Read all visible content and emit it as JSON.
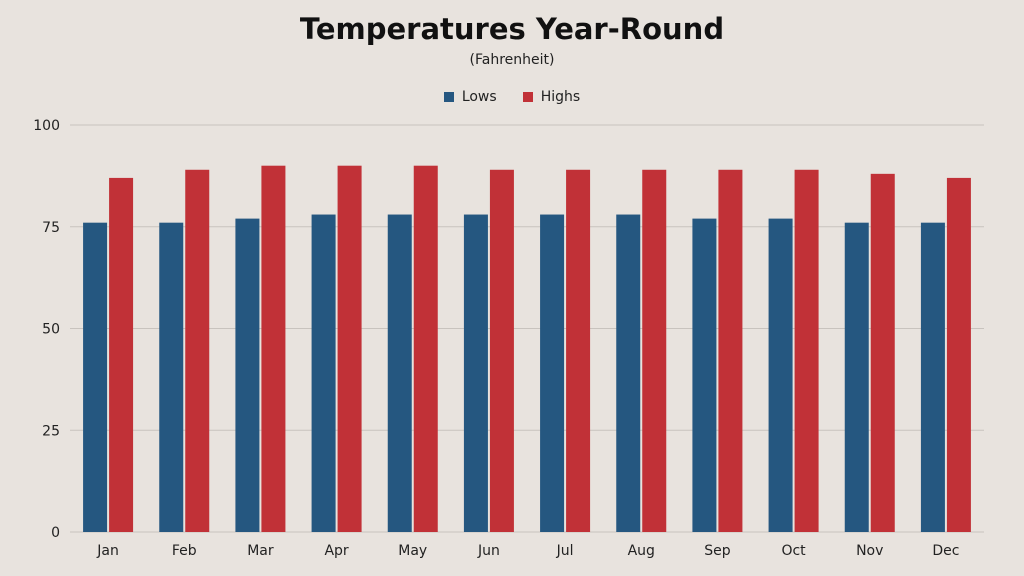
{
  "chart_data": {
    "type": "bar",
    "title": "Temperatures Year-Round",
    "subtitle": "(Fahrenheit)",
    "xlabel": "",
    "ylabel": "",
    "ylim": [
      0,
      100
    ],
    "yticks": [
      "0",
      "25",
      "50",
      "75",
      "100"
    ],
    "grid": true,
    "legend_position": "top-center",
    "categories": [
      "Jan",
      "Feb",
      "Mar",
      "Apr",
      "May",
      "Jun",
      "Jul",
      "Aug",
      "Sep",
      "Oct",
      "Nov",
      "Dec"
    ],
    "series": [
      {
        "name": "Lows",
        "color": "#255780",
        "values": [
          76,
          76,
          77,
          78,
          78,
          78,
          78,
          78,
          77,
          77,
          76,
          76
        ]
      },
      {
        "name": "Highs",
        "color": "#c13137",
        "values": [
          87,
          89,
          90,
          90,
          90,
          89,
          89,
          89,
          89,
          89,
          88,
          87
        ]
      }
    ],
    "colors": {
      "background": "#e8e3de",
      "gridline": "#c8c3be"
    }
  }
}
